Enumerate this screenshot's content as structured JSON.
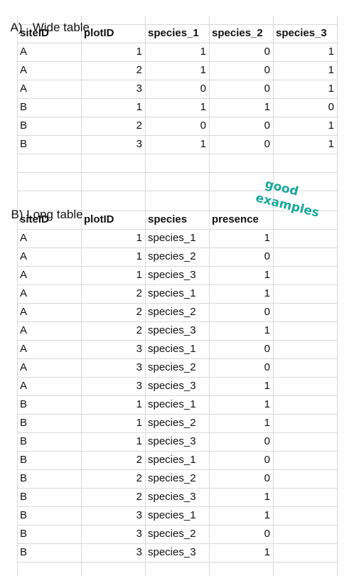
{
  "section_a": {
    "letter": "A)",
    "title": "Wide table",
    "columns": [
      "siteID",
      "plotID",
      "species_1",
      "species_2",
      "species_3"
    ],
    "rows": [
      [
        "A",
        "1",
        "1",
        "0",
        "1"
      ],
      [
        "A",
        "2",
        "1",
        "0",
        "1"
      ],
      [
        "A",
        "3",
        "0",
        "0",
        "1"
      ],
      [
        "B",
        "1",
        "1",
        "1",
        "0"
      ],
      [
        "B",
        "2",
        "0",
        "0",
        "1"
      ],
      [
        "B",
        "3",
        "1",
        "0",
        "1"
      ]
    ]
  },
  "section_b": {
    "letter": "B)",
    "title": "Long table",
    "columns": [
      "siteID",
      "plotID",
      "species",
      "presence"
    ],
    "rows": [
      [
        "A",
        "1",
        "species_1",
        "1"
      ],
      [
        "A",
        "1",
        "species_2",
        "0"
      ],
      [
        "A",
        "1",
        "species_3",
        "1"
      ],
      [
        "A",
        "2",
        "species_1",
        "1"
      ],
      [
        "A",
        "2",
        "species_2",
        "0"
      ],
      [
        "A",
        "2",
        "species_3",
        "1"
      ],
      [
        "A",
        "3",
        "species_1",
        "0"
      ],
      [
        "A",
        "3",
        "species_2",
        "0"
      ],
      [
        "A",
        "3",
        "species_3",
        "1"
      ],
      [
        "B",
        "1",
        "species_1",
        "1"
      ],
      [
        "B",
        "1",
        "species_2",
        "1"
      ],
      [
        "B",
        "1",
        "species_3",
        "0"
      ],
      [
        "B",
        "2",
        "species_1",
        "0"
      ],
      [
        "B",
        "2",
        "species_2",
        "0"
      ],
      [
        "B",
        "2",
        "species_3",
        "1"
      ],
      [
        "B",
        "3",
        "species_1",
        "1"
      ],
      [
        "B",
        "3",
        "species_2",
        "0"
      ],
      [
        "B",
        "3",
        "species_3",
        "1"
      ]
    ]
  },
  "annotation": {
    "line1": "good",
    "line2": "examples",
    "color": "#1aa89b"
  }
}
